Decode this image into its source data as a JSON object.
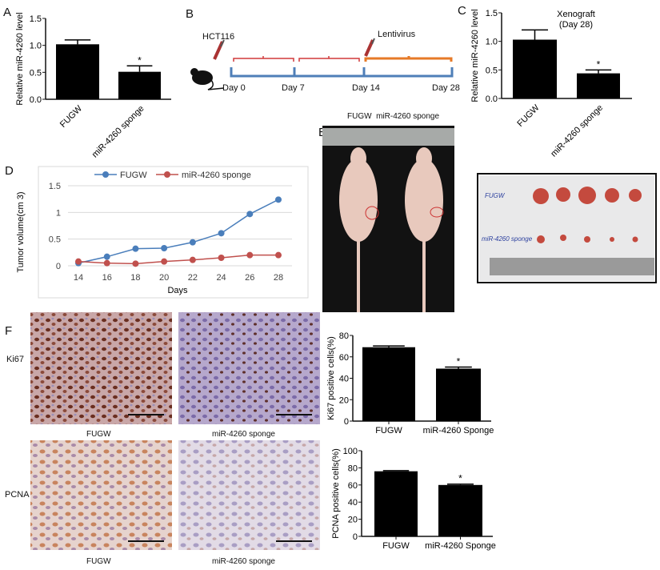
{
  "panels": {
    "a": "A",
    "b": "B",
    "c": "C",
    "d": "D",
    "e": "E",
    "f": "F"
  },
  "timeline": {
    "injection1": "HCT116",
    "injection2": "Lentivirus",
    "days": [
      "Day 0",
      "Day 7",
      "Day 14",
      "Day 28"
    ],
    "colors": {
      "baseline": "#4f7fb8",
      "phase": "#d0393a",
      "treatment": "#e67a27"
    }
  },
  "photos": {
    "mice_header": "FUGW  miR-4260 sponge",
    "tumor_labels": [
      "FUGW",
      "miR-4260 sponge"
    ],
    "ihc_rows": [
      "Ki67",
      "PCNA"
    ],
    "ihc_captions": [
      "FUGW",
      "miR-4260 sponge",
      "FUGW",
      "miR-4260 sponge"
    ]
  },
  "chart_data": [
    {
      "id": "A",
      "type": "bar",
      "title": "",
      "ylabel": "Relative miR-4260 level",
      "categories": [
        "FUGW",
        "miR-4260 sponge"
      ],
      "values": [
        1.02,
        0.51
      ],
      "errors": [
        0.08,
        0.11
      ],
      "significance": [
        "",
        "*"
      ],
      "ylim": [
        0,
        1.5
      ],
      "yticks": [
        "0.0",
        "0.5",
        "1.0",
        "1.5"
      ],
      "tick_values": [
        0,
        0.5,
        1.0,
        1.5
      ]
    },
    {
      "id": "C",
      "type": "bar",
      "title": "Xenograft",
      "subtitle": "(Day 28)",
      "ylabel": "Relative miR-4260 level",
      "categories": [
        "FUGW",
        "miR-4260 sponge"
      ],
      "values": [
        1.03,
        0.44
      ],
      "errors": [
        0.17,
        0.06
      ],
      "significance": [
        "",
        "*"
      ],
      "ylim": [
        0,
        1.5
      ],
      "yticks": [
        "0.0",
        "0.5",
        "1.0",
        "1.5"
      ],
      "tick_values": [
        0,
        0.5,
        1.0,
        1.5
      ]
    },
    {
      "id": "D",
      "type": "line",
      "xlabel": "Days",
      "ylabel": "Tumor volume(cm 3)",
      "x": [
        14,
        16,
        18,
        20,
        22,
        24,
        26,
        28
      ],
      "xticks": [
        "14",
        "16",
        "18",
        "20",
        "22",
        "24",
        "26",
        "28"
      ],
      "yticks": [
        "0",
        "0.5",
        "1",
        "1.5"
      ],
      "tick_values": [
        0,
        0.5,
        1,
        1.5
      ],
      "ylim": [
        0,
        1.5
      ],
      "legend": "top",
      "series": [
        {
          "name": "FUGW",
          "color": "#4a7ebb",
          "values": [
            0.05,
            0.17,
            0.32,
            0.33,
            0.44,
            0.61,
            0.97,
            1.24
          ]
        },
        {
          "name": "miR-4260 sponge",
          "color": "#c0504d",
          "values": [
            0.08,
            0.05,
            0.04,
            0.08,
            0.11,
            0.15,
            0.2,
            0.2
          ]
        }
      ]
    },
    {
      "id": "Ki67",
      "type": "bar",
      "ylabel": "Ki67 positive cells(%)",
      "categories": [
        "FUGW",
        "miR-4260 Sponge"
      ],
      "values": [
        69,
        49
      ],
      "errors": [
        1.2,
        1.5
      ],
      "significance": [
        "",
        "*"
      ],
      "ylim": [
        0,
        80
      ],
      "yticks": [
        "0",
        "20",
        "40",
        "60",
        "80"
      ],
      "tick_values": [
        0,
        20,
        40,
        60,
        80
      ]
    },
    {
      "id": "PCNA",
      "type": "bar",
      "ylabel": "PCNA positive cells(%)",
      "categories": [
        "FUGW",
        "miR-4260 Sponge"
      ],
      "values": [
        76,
        60
      ],
      "errors": [
        0.8,
        1.0
      ],
      "significance": [
        "",
        "*"
      ],
      "ylim": [
        0,
        100
      ],
      "yticks": [
        "0",
        "20",
        "40",
        "60",
        "80",
        "100"
      ],
      "tick_values": [
        0,
        20,
        40,
        60,
        80,
        100
      ]
    }
  ]
}
